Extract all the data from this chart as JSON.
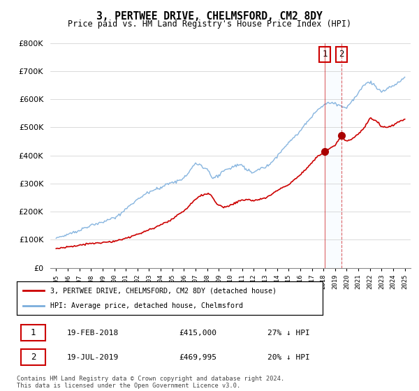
{
  "title": "3, PERTWEE DRIVE, CHELMSFORD, CM2 8DY",
  "subtitle": "Price paid vs. HM Land Registry's House Price Index (HPI)",
  "legend_line1": "3, PERTWEE DRIVE, CHELMSFORD, CM2 8DY (detached house)",
  "legend_line2": "HPI: Average price, detached house, Chelmsford",
  "footnote": "Contains HM Land Registry data © Crown copyright and database right 2024.\nThis data is licensed under the Open Government Licence v3.0.",
  "transaction1": {
    "label": "1",
    "date": "19-FEB-2018",
    "price": "£415,000",
    "hpi": "27% ↓ HPI"
  },
  "transaction2": {
    "label": "2",
    "date": "19-JUL-2019",
    "price": "£469,995",
    "hpi": "20% ↓ HPI"
  },
  "hpi_color": "#7aaddc",
  "price_color": "#cc0000",
  "vline_color": "#cc0000",
  "annotation_box_color": "#cc0000",
  "shade_color": "#ddeeff",
  "ylim": [
    0,
    800000
  ],
  "yticks": [
    0,
    100000,
    200000,
    300000,
    400000,
    500000,
    600000,
    700000,
    800000
  ],
  "t1_year": 2018.12,
  "t2_year": 2019.54,
  "t1_price": 415000,
  "t2_price": 469995,
  "xlim_left": 1994.5,
  "xlim_right": 2025.5
}
